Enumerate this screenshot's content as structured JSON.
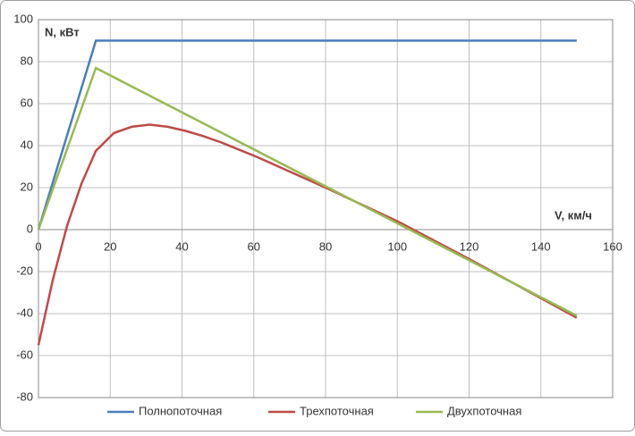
{
  "chart_data": {
    "type": "line",
    "y_axis_label": "N, кВт",
    "x_axis_label": "V, км/ч",
    "xlim": [
      0,
      160
    ],
    "xticks": [
      0,
      20,
      40,
      60,
      80,
      100,
      120,
      140,
      160
    ],
    "ylim": [
      -80,
      100
    ],
    "yticks": [
      -80,
      -60,
      -40,
      -20,
      0,
      20,
      40,
      60,
      80,
      100
    ],
    "grid": true,
    "legend": "bottom",
    "series": [
      {
        "name": "Полнопоточная",
        "color": "#4a7ebb",
        "x": [
          0,
          16,
          150
        ],
        "values": [
          0,
          90,
          90
        ]
      },
      {
        "name": "Трехпоточная",
        "color": "#be4b48",
        "x": [
          0,
          4,
          8,
          12,
          16,
          21,
          26,
          31,
          36,
          41,
          46,
          51,
          56,
          61,
          80,
          100,
          120,
          150
        ],
        "values": [
          -55,
          -24,
          2,
          22,
          37.5,
          46,
          49,
          50,
          49,
          47,
          44.5,
          41.5,
          38,
          34.5,
          20,
          4,
          -14,
          -42
        ]
      },
      {
        "name": "Двухпоточная",
        "color": "#98b954",
        "x": [
          0,
          16,
          150
        ],
        "values": [
          0,
          77,
          -41
        ]
      }
    ]
  }
}
